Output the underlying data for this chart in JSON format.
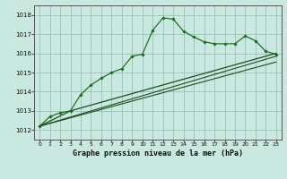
{
  "title": "Graphe pression niveau de la mer (hPa)",
  "background_color": "#c8e8e0",
  "grid_color": "#9bbfba",
  "line_color_dark": "#1a4f1a",
  "line_color_main": "#1a6b1a",
  "xlim": [
    -0.5,
    23.5
  ],
  "ylim": [
    1011.5,
    1018.5
  ],
  "yticks": [
    1012,
    1013,
    1014,
    1015,
    1016,
    1017,
    1018
  ],
  "xticks": [
    0,
    1,
    2,
    3,
    4,
    5,
    6,
    7,
    8,
    9,
    10,
    11,
    12,
    13,
    14,
    15,
    16,
    17,
    18,
    19,
    20,
    21,
    22,
    23
  ],
  "series1_x": [
    0,
    1,
    2,
    3,
    4,
    5,
    6,
    7,
    8,
    9,
    10,
    11,
    12,
    13,
    14,
    15,
    16,
    17,
    18,
    19,
    20,
    21,
    22,
    23
  ],
  "series1_y": [
    1012.2,
    1012.7,
    1012.9,
    1013.0,
    1013.85,
    1014.35,
    1014.7,
    1015.0,
    1015.2,
    1015.85,
    1015.95,
    1017.2,
    1017.85,
    1017.78,
    1017.15,
    1016.85,
    1016.6,
    1016.5,
    1016.5,
    1016.5,
    1016.9,
    1016.65,
    1016.1,
    1015.95
  ],
  "series2_x": [
    0,
    3,
    23
  ],
  "series2_y": [
    1012.2,
    1013.0,
    1016.0
  ],
  "series3_x": [
    0,
    23
  ],
  "series3_y": [
    1012.2,
    1015.85
  ],
  "series4_x": [
    0,
    23
  ],
  "series4_y": [
    1012.2,
    1015.55
  ]
}
